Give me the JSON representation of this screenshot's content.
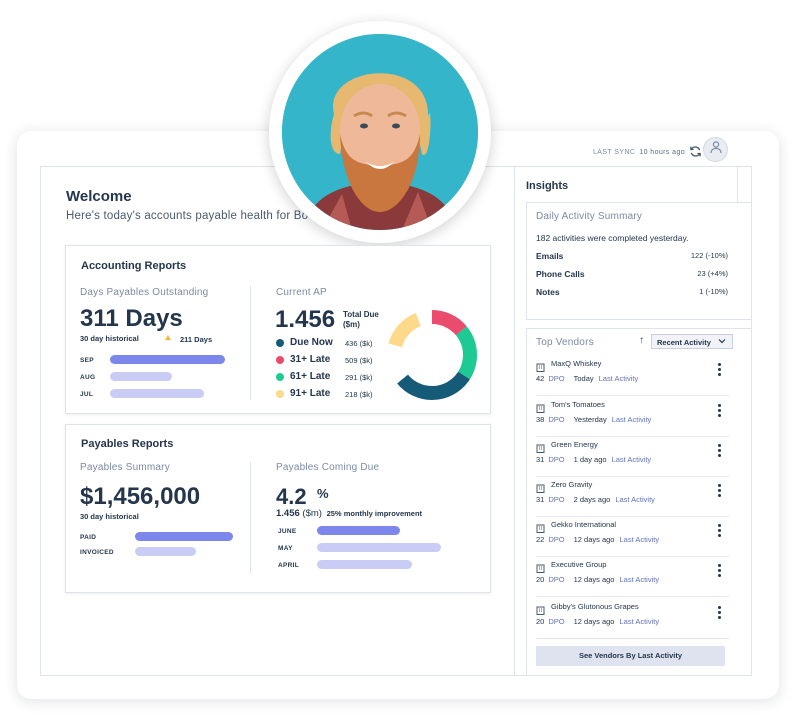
{
  "header": {
    "last_sync_label": "LAST SYNC",
    "last_sync_value": "10 hours ago"
  },
  "welcome": {
    "title": "Welcome",
    "subtitle": "Here's today's accounts payable health for Bo"
  },
  "accounting": {
    "title": "Accounting Reports",
    "dpo": {
      "label": "Days Payables Outstanding",
      "value": "311 Days",
      "historical": "30 day historical",
      "trend": "211 Days",
      "rows": [
        {
          "label": "SEP",
          "fraction": 1.0
        },
        {
          "label": "AUG",
          "fraction": 0.54
        },
        {
          "label": "JUL",
          "fraction": 0.82
        }
      ]
    },
    "current_ap": {
      "label": "Current AP",
      "value": "1.456",
      "total_due": "Total Due ($m)",
      "legend": [
        {
          "label": "Due Now",
          "value": "436 ($k)",
          "color": "#155a77"
        },
        {
          "label": "31+ Late",
          "value": "509 ($k)",
          "color": "#ea4c6e"
        },
        {
          "label": "61+ Late",
          "value": "291 ($k)",
          "color": "#1ec994"
        },
        {
          "label": "91+ Late",
          "value": "218 ($k)",
          "color": "#fdd98a"
        }
      ]
    }
  },
  "payables": {
    "title": "Payables Reports",
    "summary": {
      "label": "Payables Summary",
      "value": "$1,456,000",
      "historical": "30 day historical",
      "rows": [
        {
          "label": "PAID",
          "fraction": 1.0
        },
        {
          "label": "INVOICED",
          "fraction": 0.62
        }
      ]
    },
    "coming_due": {
      "label": "Payables Coming Due",
      "value": "4.2",
      "unit": "%",
      "detail_value": "1.456",
      "detail_unit": "($m)",
      "improvement": "25% monthly improvement",
      "rows": [
        {
          "label": "JUNE",
          "fraction": 0.67
        },
        {
          "label": "MAY",
          "fraction": 1.0
        },
        {
          "label": "APRIL",
          "fraction": 0.77
        }
      ]
    }
  },
  "insights": {
    "title": "Insights",
    "daily": {
      "title": "Daily Activity Summary",
      "text": "182 activities were completed yesterday.",
      "stats": [
        {
          "label": "Emails",
          "value": "122 (-10%)"
        },
        {
          "label": "Phone Calls",
          "value": "23 (+4%)"
        },
        {
          "label": "Notes",
          "value": "1 (-10%)"
        }
      ]
    },
    "vendors": {
      "title": "Top Vendors",
      "sort_label": "Recent Activity",
      "dpo_label": "DPO",
      "last_activity_label": "Last Activity",
      "items": [
        {
          "name": "MaxQ Whiskey",
          "dpo": "42",
          "when": "Today"
        },
        {
          "name": "Tom's Tomatoes",
          "dpo": "38",
          "when": "Yesterday"
        },
        {
          "name": "Green Energy",
          "dpo": "31",
          "when": "1 day ago"
        },
        {
          "name": "Zero Gravity",
          "dpo": "31",
          "when": "2 days ago"
        },
        {
          "name": "Gekko International",
          "dpo": "22",
          "when": "12 days ago"
        },
        {
          "name": "Executive Group",
          "dpo": "20",
          "when": "12 days ago"
        },
        {
          "name": "Gibby's Glutonous Grapes",
          "dpo": "20",
          "when": "12 days ago"
        }
      ],
      "button": "See Vendors By Last Activity"
    }
  },
  "colors": {
    "navy": "#23364c",
    "bar_dark": "#7d86ea",
    "bar_light": "#c9cdf6",
    "accent_yellow": "#f4b73b"
  },
  "icons": [
    "sync-icon",
    "user-icon",
    "building-icon",
    "kebab-icon",
    "sort-arrow-icon",
    "chevron-down-icon",
    "trend-up-icon"
  ]
}
